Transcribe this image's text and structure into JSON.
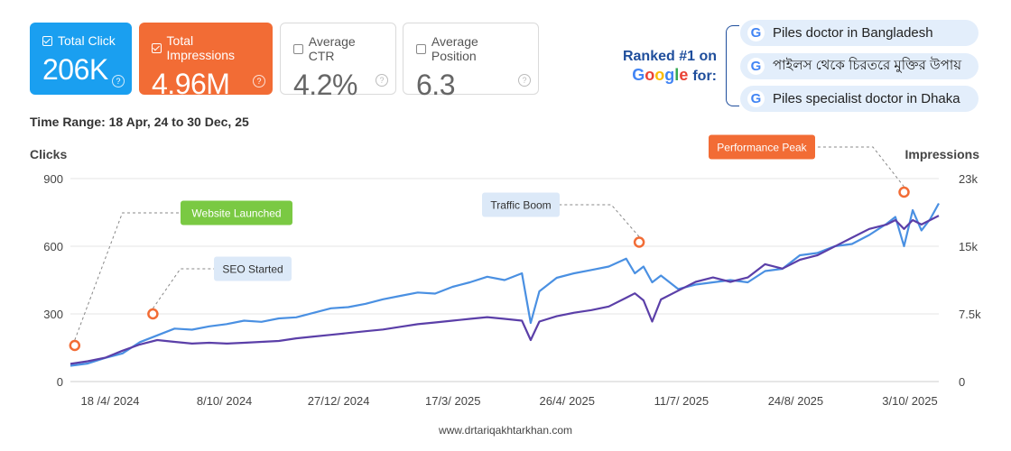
{
  "metrics": {
    "total_click": {
      "label": "Total Click",
      "value": "206K",
      "color": "#1a9ff0"
    },
    "total_impressions": {
      "label": "Total Impressions",
      "value": "4.96M",
      "color": "#f26c35"
    },
    "average_ctr": {
      "label": "Average CTR",
      "value": "4.2%"
    },
    "average_position": {
      "label": "Average Position",
      "value": "6.3"
    },
    "help_glyph": "?"
  },
  "ranked": {
    "line1": "Ranked #1 on",
    "google_letters": [
      "G",
      "o",
      "o",
      "g",
      "l",
      "e"
    ],
    "google_colors": [
      "#4285f4",
      "#ea4335",
      "#fbbc05",
      "#4285f4",
      "#34a853",
      "#ea4335"
    ],
    "suffix": "for:",
    "g_glyph": "G",
    "keywords": [
      "Piles doctor in Bangladesh",
      "পাইলস থেকে চিরতরে মুক্তির উপায়",
      "Piles specialist doctor in Dhaka"
    ]
  },
  "time_range": "Time Range: 18 Apr, 24 to 30 Dec, 25",
  "footer": "www.drtariqakhtarkhan.com",
  "chart_data": {
    "type": "line",
    "xlabel": "",
    "x_tick_labels": [
      "18 /4/ 2024",
      "8/10/ 2024",
      "27/12/ 2024",
      "17/3/ 2025",
      "26/4/ 2025",
      "11/7/ 2025",
      "24/8/ 2025",
      "3/10/ 2025"
    ],
    "y_left": {
      "label": "Clicks",
      "range": [
        0,
        900
      ],
      "ticks": [
        "0",
        "300",
        "600",
        "900"
      ]
    },
    "y_right": {
      "label": "Impressions",
      "range": [
        0,
        23000
      ],
      "ticks": [
        "0",
        "7.5k",
        "15k",
        "23k"
      ]
    },
    "grid": true,
    "x_range": [
      0,
      100
    ],
    "series": [
      {
        "axis": "left",
        "color": "#4a90e2",
        "x": [
          0,
          2,
          4,
          6,
          8,
          10,
          12,
          14,
          16,
          18,
          20,
          22,
          24,
          26,
          28,
          30,
          32,
          34,
          36,
          38,
          40,
          42,
          44,
          46,
          48,
          50,
          52,
          53,
          54,
          56,
          58,
          60,
          62,
          64,
          65,
          66,
          67,
          68,
          70,
          72,
          74,
          76,
          78,
          80,
          82,
          84,
          86,
          88,
          90,
          92,
          94,
          95,
          96,
          97,
          98,
          99,
          100
        ],
        "y": [
          70,
          80,
          105,
          125,
          175,
          205,
          235,
          230,
          245,
          255,
          270,
          265,
          280,
          285,
          305,
          325,
          330,
          345,
          365,
          380,
          395,
          390,
          420,
          440,
          465,
          450,
          480,
          260,
          400,
          460,
          480,
          495,
          510,
          545,
          480,
          510,
          440,
          470,
          410,
          430,
          440,
          450,
          440,
          490,
          500,
          560,
          570,
          600,
          610,
          650,
          700,
          730,
          600,
          760,
          670,
          720,
          790
        ]
      },
      {
        "axis": "right",
        "color": "#5b3fa8",
        "x": [
          0,
          2,
          4,
          6,
          8,
          10,
          12,
          14,
          16,
          18,
          20,
          22,
          24,
          26,
          28,
          30,
          32,
          34,
          36,
          38,
          40,
          42,
          44,
          46,
          48,
          50,
          52,
          53,
          54,
          56,
          58,
          60,
          62,
          64,
          65,
          66,
          67,
          68,
          70,
          72,
          74,
          76,
          78,
          80,
          82,
          84,
          86,
          88,
          90,
          92,
          94,
          95,
          96,
          97,
          98,
          99,
          100
        ],
        "y": [
          2000,
          2300,
          2700,
          3500,
          4200,
          4700,
          4500,
          4300,
          4400,
          4300,
          4400,
          4500,
          4600,
          4900,
          5100,
          5300,
          5500,
          5700,
          5900,
          6200,
          6500,
          6700,
          6900,
          7100,
          7300,
          7100,
          6900,
          4700,
          6800,
          7400,
          7800,
          8100,
          8500,
          9500,
          10000,
          9200,
          6800,
          9300,
          10300,
          11300,
          11800,
          11300,
          11800,
          13300,
          12800,
          13800,
          14300,
          15300,
          16300,
          17300,
          17800,
          18300,
          17300,
          18300,
          17800,
          18300,
          18800
        ]
      }
    ],
    "annotations": [
      {
        "text": "Website Launched",
        "color": "#7ac943",
        "text_color": "#ffffff",
        "x": 0.5,
        "y": 160
      },
      {
        "text": "SEO Started",
        "color": "#dce9f8",
        "text_color": "#333333",
        "x": 9.5,
        "y": 300
      },
      {
        "text": "Traffic Boom",
        "color": "#dce9f8",
        "text_color": "#333333",
        "x": 65.5,
        "y": 618
      },
      {
        "text": "Performance Peak",
        "color": "#f26c35",
        "text_color": "#ffffff",
        "x": 96,
        "y": 840
      }
    ]
  }
}
